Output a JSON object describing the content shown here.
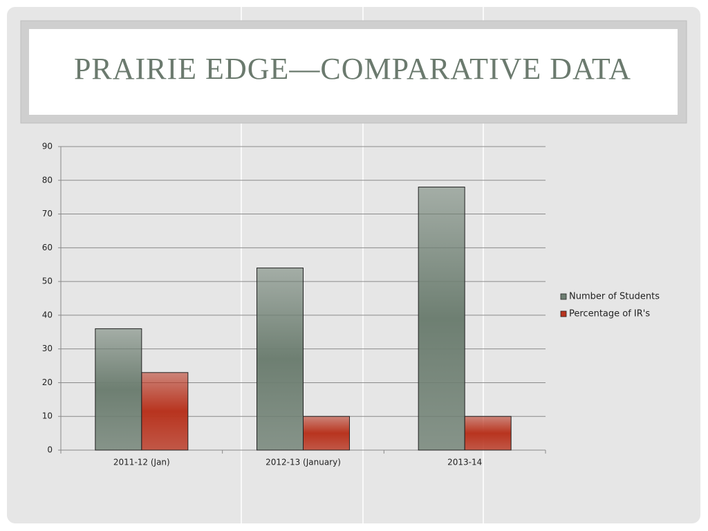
{
  "chart_data": {
    "type": "bar",
    "title": "PRAIRIE EDGE—COMPARATIVE DATA",
    "categories": [
      "2011-12 (Jan)",
      "2012-13 (January)",
      "2013-14"
    ],
    "series": [
      {
        "name": "Number of Students",
        "color": "#6e7f72",
        "values": [
          36,
          54,
          78
        ]
      },
      {
        "name": "Percentage of IR's",
        "color": "#b8341f",
        "values": [
          23,
          10,
          10
        ]
      }
    ],
    "ylim": [
      0,
      90
    ],
    "yticks": [
      0,
      10,
      20,
      30,
      40,
      50,
      60,
      70,
      80,
      90
    ],
    "grid": true,
    "legend": "right"
  }
}
